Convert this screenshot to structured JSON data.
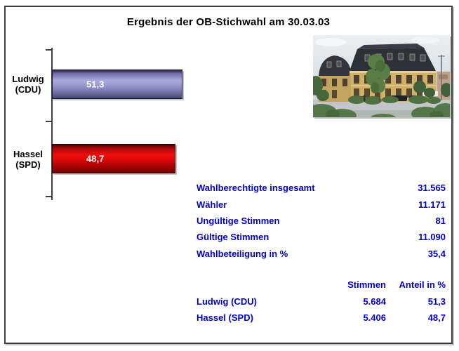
{
  "title": "Ergebnis der OB-Stichwahl am 30.03.03",
  "chart_data": {
    "type": "bar",
    "orientation": "horizontal",
    "title": "Ergebnis der OB-Stichwahl am 30.03.03",
    "categories": [
      "Ludwig (CDU)",
      "Hassel (SPD)"
    ],
    "category_lines": [
      [
        "Ludwig",
        "(CDU)"
      ],
      [
        "Hassel",
        "(SPD)"
      ]
    ],
    "values": [
      51.3,
      48.7
    ],
    "value_labels": [
      "51,3",
      "48,7"
    ],
    "unit": "Anteil in %",
    "bar_colors": [
      "#9999d4",
      "#dd0000"
    ],
    "value_axis_visible": false,
    "gridlines": false,
    "legend": "none"
  },
  "photo": {
    "name": "historic town-hall building photograph"
  },
  "stats_table": {
    "rows": [
      {
        "label": "Wahlberechtigte insgesamt",
        "value": "31.565"
      },
      {
        "label": "Wähler",
        "value": "11.171"
      },
      {
        "label": "Ungültige Stimmen",
        "value": "81"
      },
      {
        "label": "Gültige Stimmen",
        "value": "11.090"
      },
      {
        "label": "Wahlbeteiligung in %",
        "value": "35,4"
      }
    ]
  },
  "results_table": {
    "headers": [
      "Stimmen",
      "Anteil in %"
    ],
    "rows": [
      {
        "name": "Ludwig (CDU)",
        "stimmen": "5.684",
        "anteil": "51,3"
      },
      {
        "name": "Hassel (SPD)",
        "stimmen": "5.406",
        "anteil": "48,7"
      }
    ]
  },
  "colors": {
    "accent_text": "#0000c8",
    "bar_ludwig": "#9999d4",
    "bar_hassel": "#dd0000",
    "title_text": "#000000",
    "frame_border": "#3f3f3f"
  }
}
